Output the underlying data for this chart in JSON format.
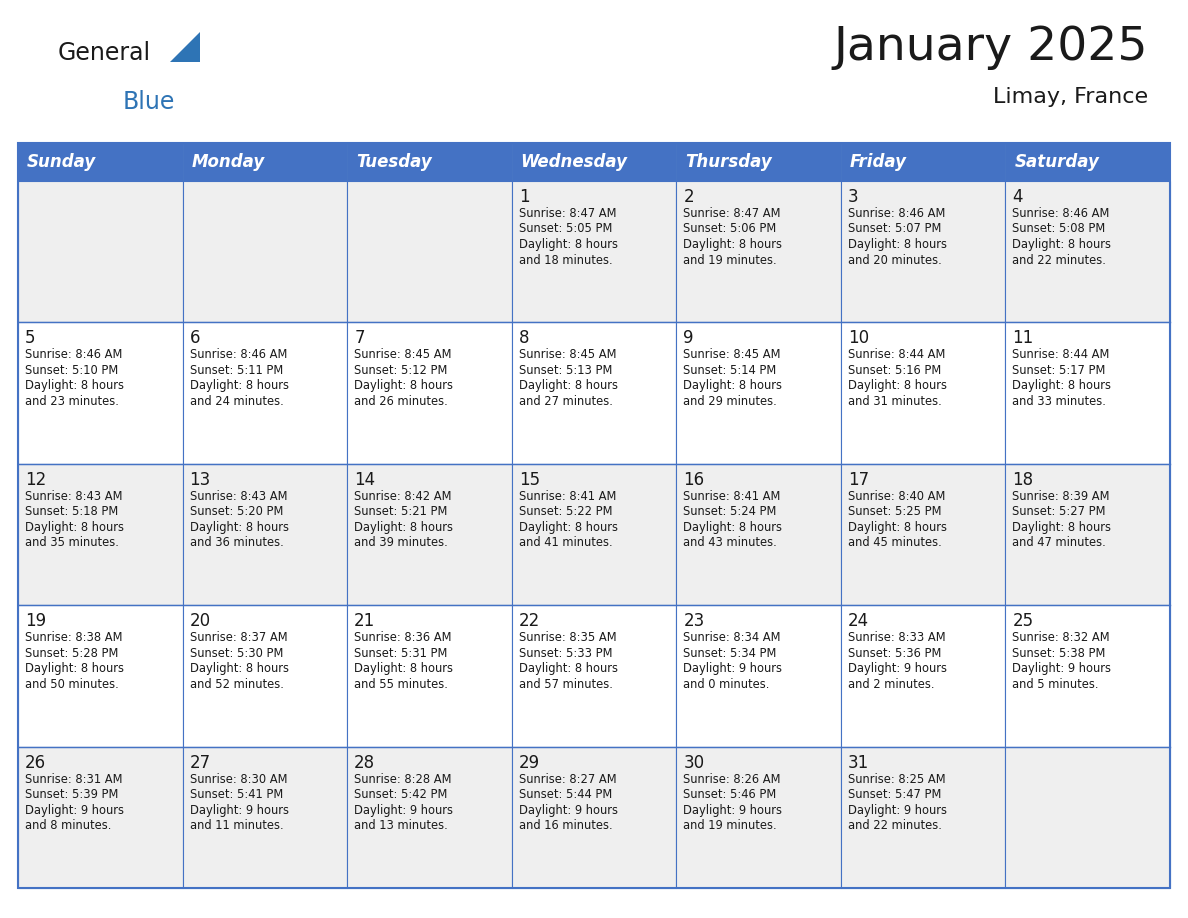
{
  "title": "January 2025",
  "subtitle": "Limay, France",
  "header_color": "#4472C4",
  "header_text_color": "#FFFFFF",
  "cell_bg_odd": "#EFEFEF",
  "cell_bg_even": "#FFFFFF",
  "border_color": "#4472C4",
  "text_color": "#1a1a1a",
  "days_of_week": [
    "Sunday",
    "Monday",
    "Tuesday",
    "Wednesday",
    "Thursday",
    "Friday",
    "Saturday"
  ],
  "logo_general_color": "#1a1a1a",
  "logo_blue_color": "#2E74B5",
  "logo_triangle_color": "#2E74B5",
  "weeks": [
    [
      {
        "day": null
      },
      {
        "day": null
      },
      {
        "day": null
      },
      {
        "day": 1,
        "sunrise": "8:47 AM",
        "sunset": "5:05 PM",
        "daylight": "8 hours and 18 minutes."
      },
      {
        "day": 2,
        "sunrise": "8:47 AM",
        "sunset": "5:06 PM",
        "daylight": "8 hours and 19 minutes."
      },
      {
        "day": 3,
        "sunrise": "8:46 AM",
        "sunset": "5:07 PM",
        "daylight": "8 hours and 20 minutes."
      },
      {
        "day": 4,
        "sunrise": "8:46 AM",
        "sunset": "5:08 PM",
        "daylight": "8 hours and 22 minutes."
      }
    ],
    [
      {
        "day": 5,
        "sunrise": "8:46 AM",
        "sunset": "5:10 PM",
        "daylight": "8 hours and 23 minutes."
      },
      {
        "day": 6,
        "sunrise": "8:46 AM",
        "sunset": "5:11 PM",
        "daylight": "8 hours and 24 minutes."
      },
      {
        "day": 7,
        "sunrise": "8:45 AM",
        "sunset": "5:12 PM",
        "daylight": "8 hours and 26 minutes."
      },
      {
        "day": 8,
        "sunrise": "8:45 AM",
        "sunset": "5:13 PM",
        "daylight": "8 hours and 27 minutes."
      },
      {
        "day": 9,
        "sunrise": "8:45 AM",
        "sunset": "5:14 PM",
        "daylight": "8 hours and 29 minutes."
      },
      {
        "day": 10,
        "sunrise": "8:44 AM",
        "sunset": "5:16 PM",
        "daylight": "8 hours and 31 minutes."
      },
      {
        "day": 11,
        "sunrise": "8:44 AM",
        "sunset": "5:17 PM",
        "daylight": "8 hours and 33 minutes."
      }
    ],
    [
      {
        "day": 12,
        "sunrise": "8:43 AM",
        "sunset": "5:18 PM",
        "daylight": "8 hours and 35 minutes."
      },
      {
        "day": 13,
        "sunrise": "8:43 AM",
        "sunset": "5:20 PM",
        "daylight": "8 hours and 36 minutes."
      },
      {
        "day": 14,
        "sunrise": "8:42 AM",
        "sunset": "5:21 PM",
        "daylight": "8 hours and 39 minutes."
      },
      {
        "day": 15,
        "sunrise": "8:41 AM",
        "sunset": "5:22 PM",
        "daylight": "8 hours and 41 minutes."
      },
      {
        "day": 16,
        "sunrise": "8:41 AM",
        "sunset": "5:24 PM",
        "daylight": "8 hours and 43 minutes."
      },
      {
        "day": 17,
        "sunrise": "8:40 AM",
        "sunset": "5:25 PM",
        "daylight": "8 hours and 45 minutes."
      },
      {
        "day": 18,
        "sunrise": "8:39 AM",
        "sunset": "5:27 PM",
        "daylight": "8 hours and 47 minutes."
      }
    ],
    [
      {
        "day": 19,
        "sunrise": "8:38 AM",
        "sunset": "5:28 PM",
        "daylight": "8 hours and 50 minutes."
      },
      {
        "day": 20,
        "sunrise": "8:37 AM",
        "sunset": "5:30 PM",
        "daylight": "8 hours and 52 minutes."
      },
      {
        "day": 21,
        "sunrise": "8:36 AM",
        "sunset": "5:31 PM",
        "daylight": "8 hours and 55 minutes."
      },
      {
        "day": 22,
        "sunrise": "8:35 AM",
        "sunset": "5:33 PM",
        "daylight": "8 hours and 57 minutes."
      },
      {
        "day": 23,
        "sunrise": "8:34 AM",
        "sunset": "5:34 PM",
        "daylight": "9 hours and 0 minutes."
      },
      {
        "day": 24,
        "sunrise": "8:33 AM",
        "sunset": "5:36 PM",
        "daylight": "9 hours and 2 minutes."
      },
      {
        "day": 25,
        "sunrise": "8:32 AM",
        "sunset": "5:38 PM",
        "daylight": "9 hours and 5 minutes."
      }
    ],
    [
      {
        "day": 26,
        "sunrise": "8:31 AM",
        "sunset": "5:39 PM",
        "daylight": "9 hours and 8 minutes."
      },
      {
        "day": 27,
        "sunrise": "8:30 AM",
        "sunset": "5:41 PM",
        "daylight": "9 hours and 11 minutes."
      },
      {
        "day": 28,
        "sunrise": "8:28 AM",
        "sunset": "5:42 PM",
        "daylight": "9 hours and 13 minutes."
      },
      {
        "day": 29,
        "sunrise": "8:27 AM",
        "sunset": "5:44 PM",
        "daylight": "9 hours and 16 minutes."
      },
      {
        "day": 30,
        "sunrise": "8:26 AM",
        "sunset": "5:46 PM",
        "daylight": "9 hours and 19 minutes."
      },
      {
        "day": 31,
        "sunrise": "8:25 AM",
        "sunset": "5:47 PM",
        "daylight": "9 hours and 22 minutes."
      },
      {
        "day": null
      }
    ]
  ]
}
